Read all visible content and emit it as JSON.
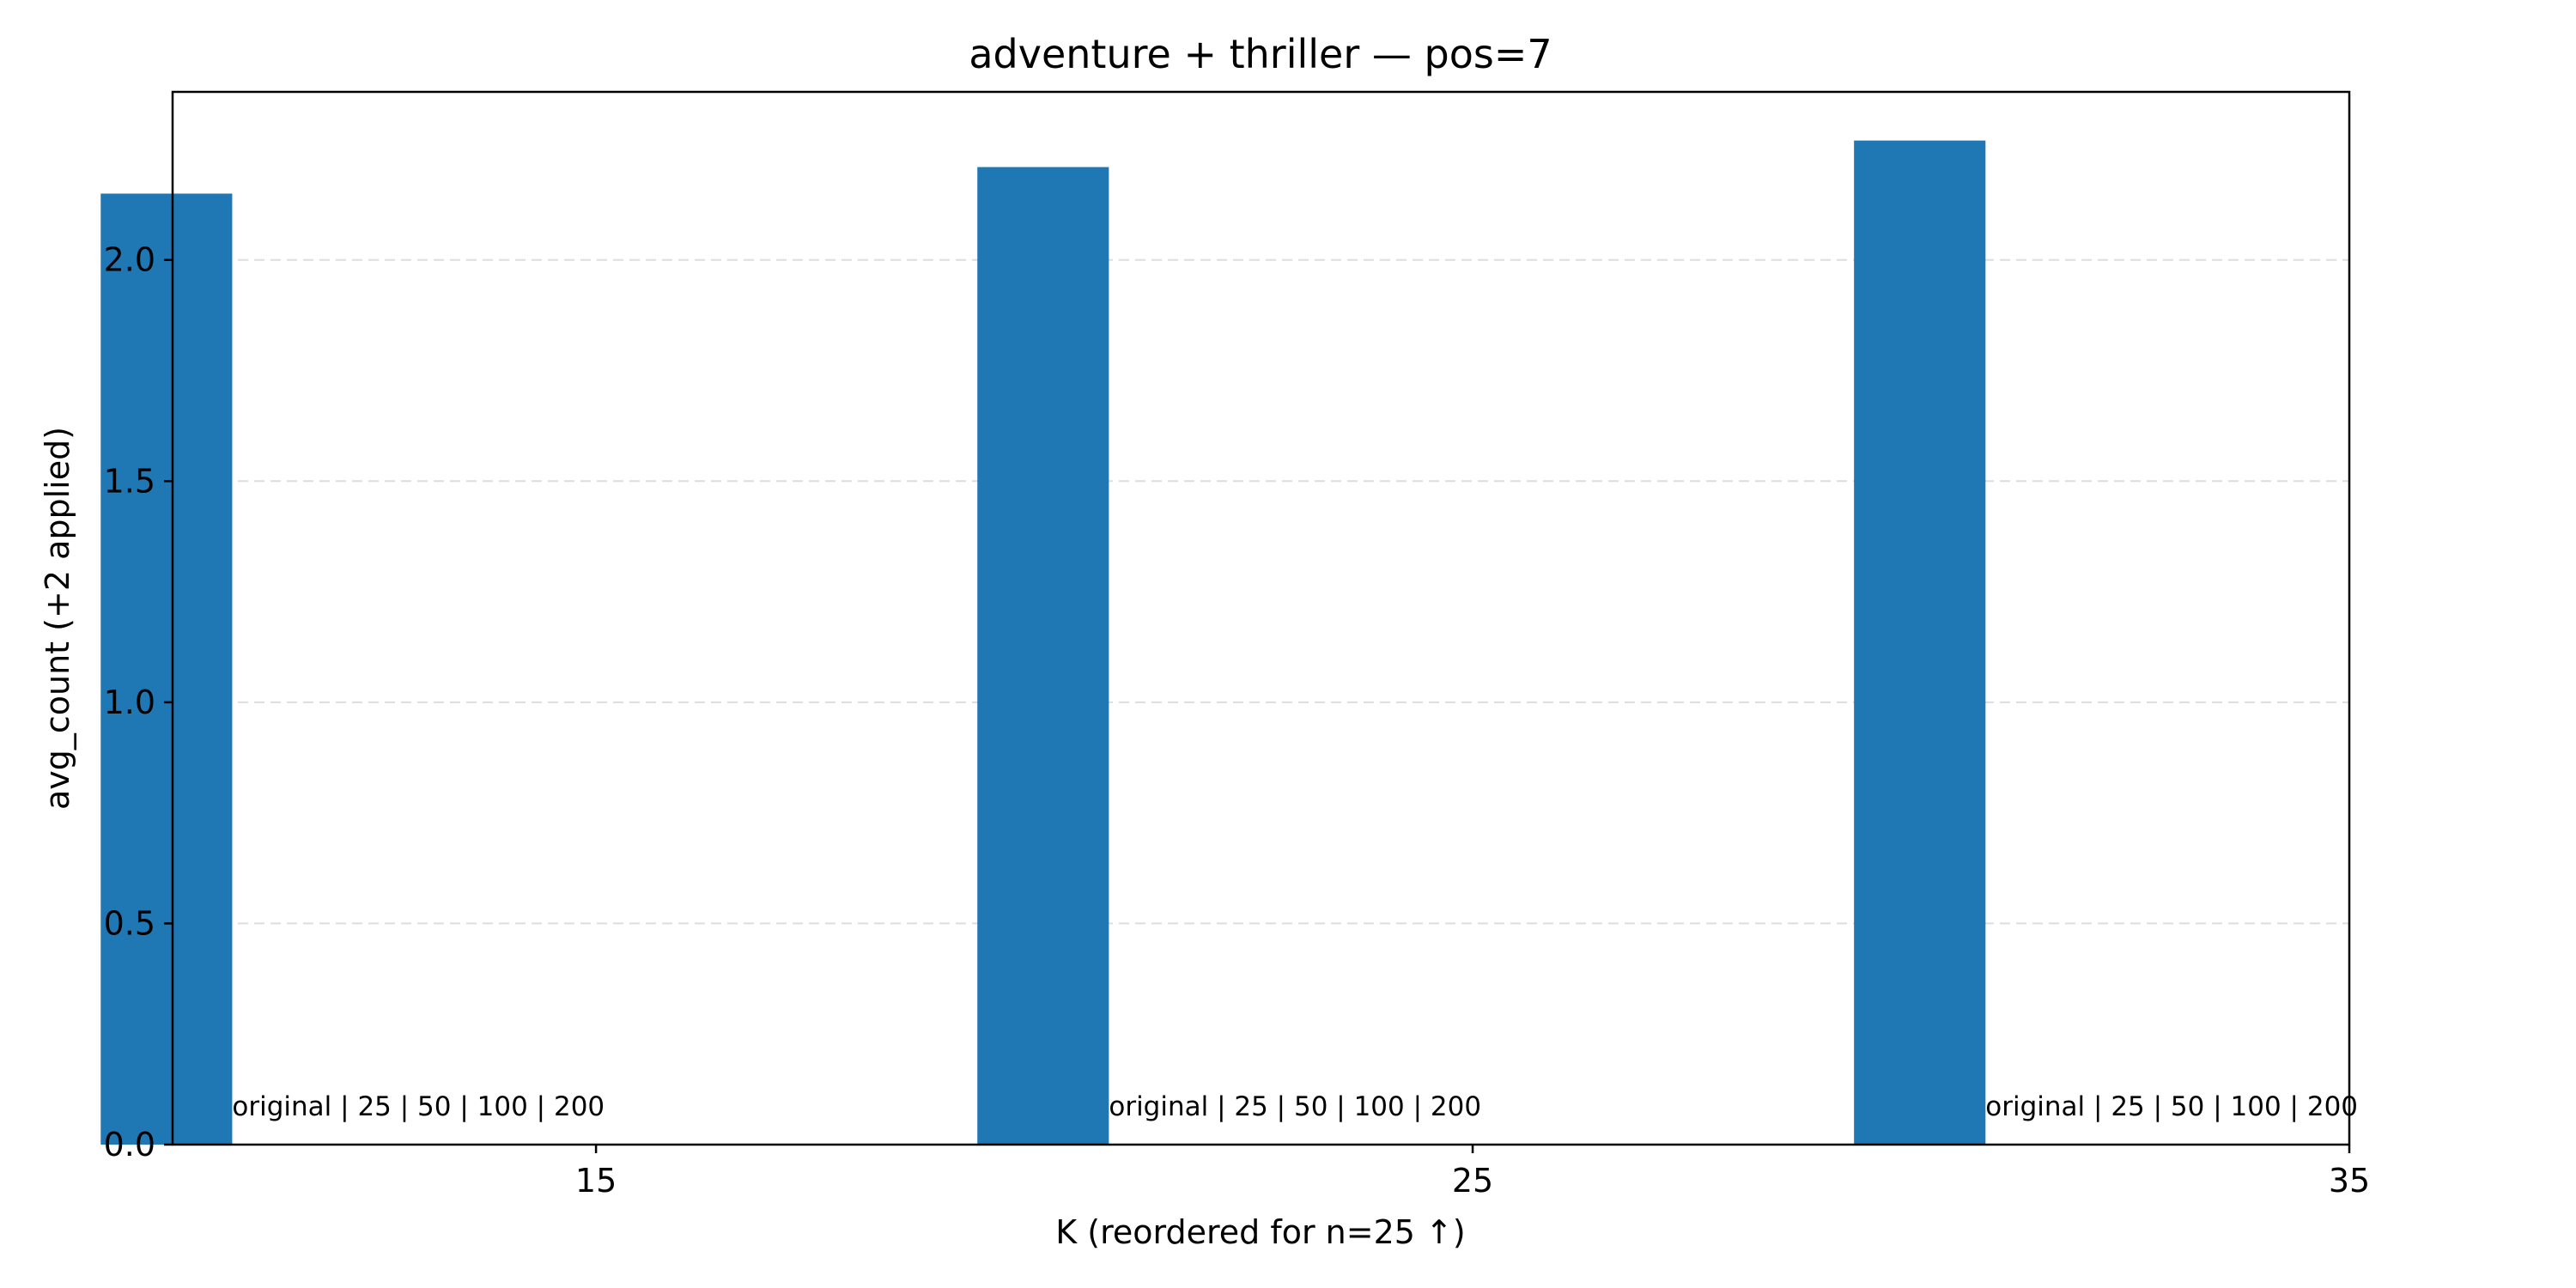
{
  "chart_data": {
    "type": "bar",
    "title": "adventure + thriller — pos=7",
    "xlabel": "K (reordered for n=25 ↑)",
    "ylabel": "avg_count (+2 applied)",
    "x_ticks": [
      "15",
      "25",
      "35"
    ],
    "y_ticks": [
      "0.0",
      "0.5",
      "1.0",
      "1.5",
      "2.0"
    ],
    "ylim": [
      0,
      2.38
    ],
    "grid": "y-dashed",
    "color": "#1f77b4",
    "categories": [
      "15",
      "25",
      "35"
    ],
    "values": [
      2.15,
      2.21,
      2.27
    ],
    "annotations": [
      "original | 25 | 50 | 100 | 200",
      "original | 25 | 50 | 100 | 200",
      "original | 25 | 50 | 100 | 200"
    ]
  }
}
